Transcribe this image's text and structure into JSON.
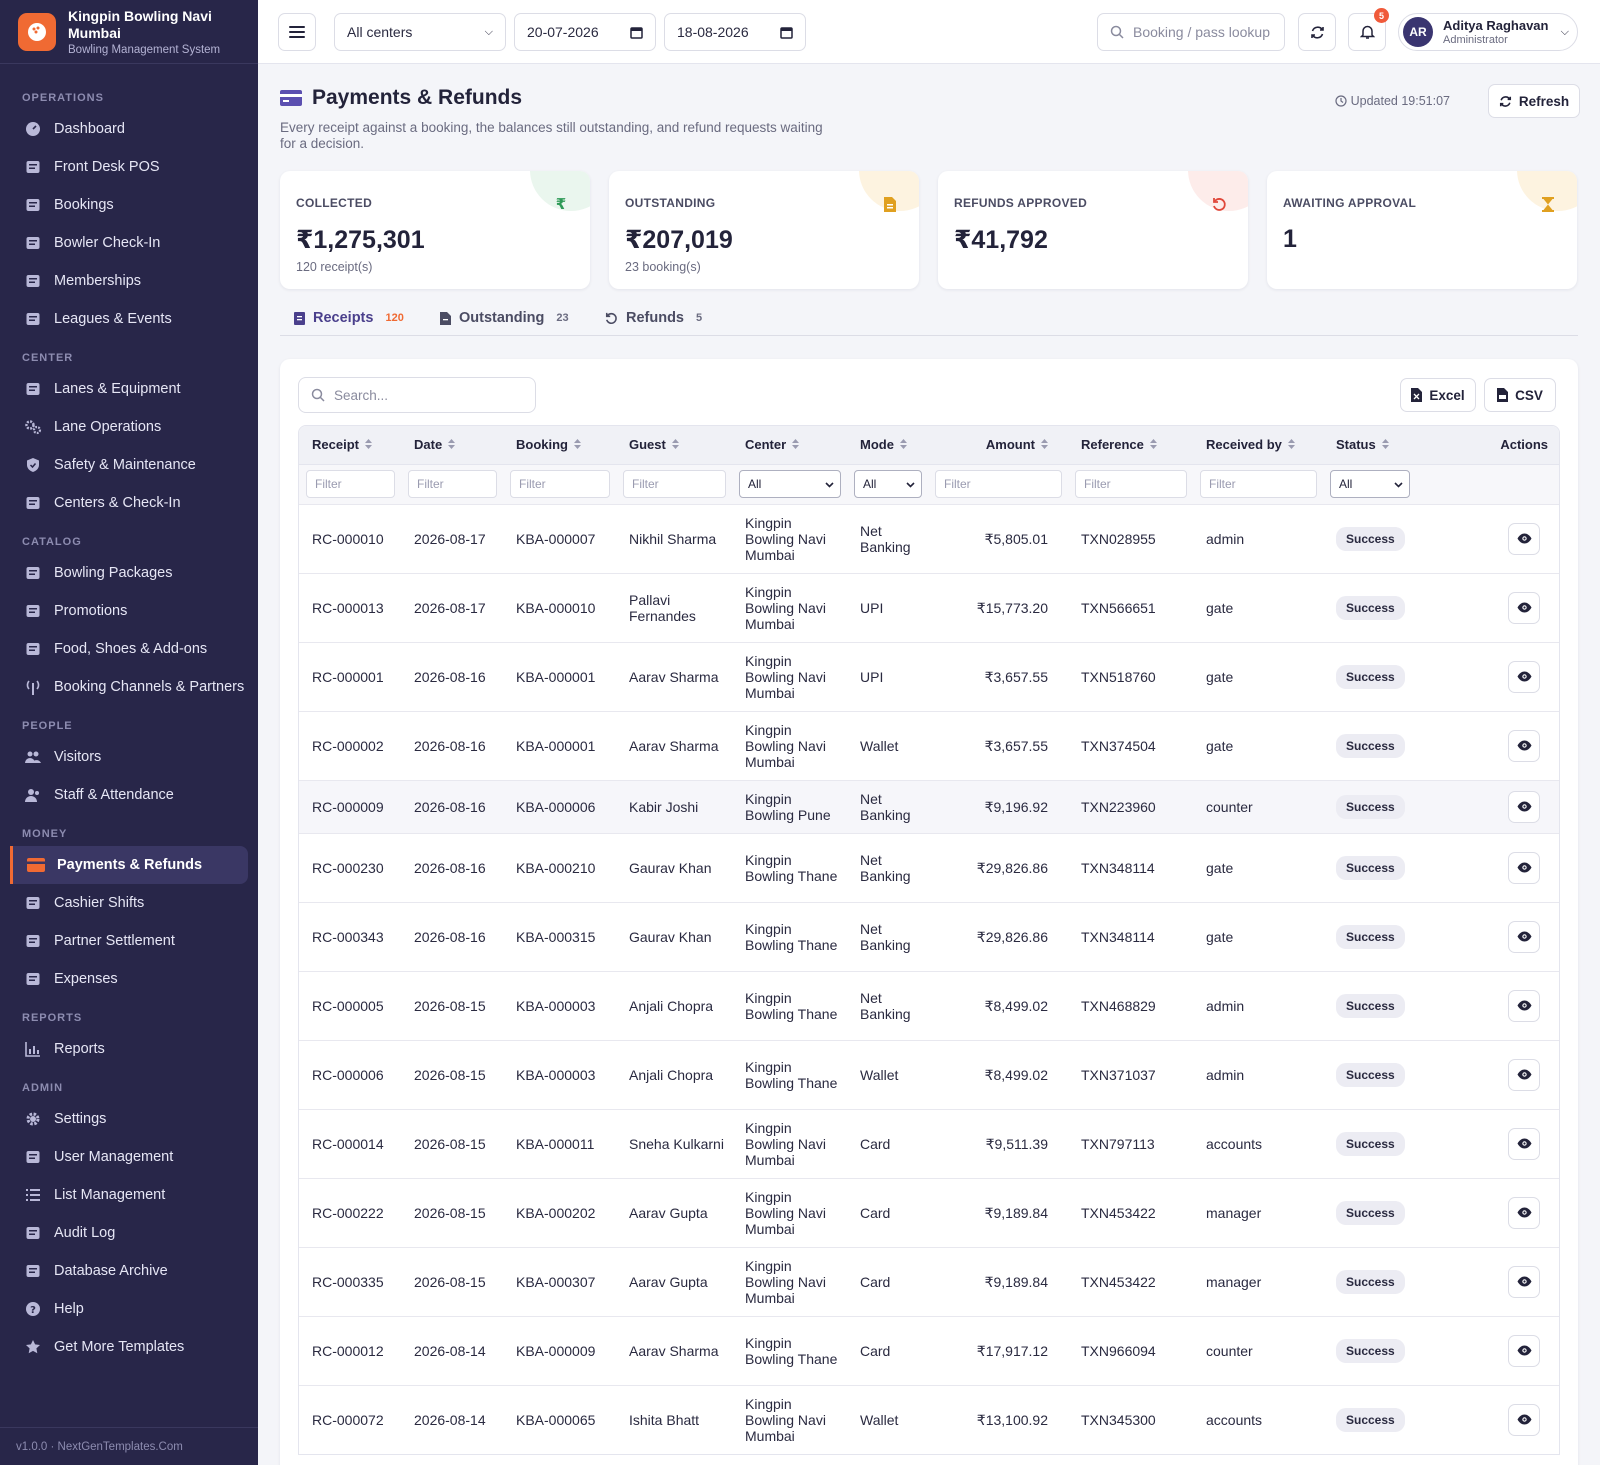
{
  "brand": {
    "name": "Kingpin Bowling Navi Mumbai",
    "subtitle": "Bowling Management System"
  },
  "sidebar": {
    "sections": [
      {
        "title": "OPERATIONS",
        "items": [
          {
            "label": "Dashboard",
            "icon": "gauge-icon"
          },
          {
            "label": "Front Desk POS",
            "icon": "cash-register-icon"
          },
          {
            "label": "Bookings",
            "icon": "receipt-icon"
          },
          {
            "label": "Bowler Check-In",
            "icon": "door-icon"
          },
          {
            "label": "Memberships",
            "icon": "id-card-icon"
          },
          {
            "label": "Leagues & Events",
            "icon": "masks-icon"
          }
        ]
      },
      {
        "title": "CENTER",
        "items": [
          {
            "label": "Lanes & Equipment",
            "icon": "bowling-ball-icon"
          },
          {
            "label": "Lane Operations",
            "icon": "gears-icon"
          },
          {
            "label": "Safety & Maintenance",
            "icon": "shield-icon"
          },
          {
            "label": "Centers & Check-In",
            "icon": "building-icon"
          }
        ]
      },
      {
        "title": "CATALOG",
        "items": [
          {
            "label": "Bowling Packages",
            "icon": "ticket-icon"
          },
          {
            "label": "Promotions",
            "icon": "tags-icon"
          },
          {
            "label": "Food, Shoes & Add-ons",
            "icon": "basket-icon"
          },
          {
            "label": "Booking Channels & Partners",
            "icon": "broadcast-icon"
          }
        ]
      },
      {
        "title": "PEOPLE",
        "items": [
          {
            "label": "Visitors",
            "icon": "users-icon"
          },
          {
            "label": "Staff & Attendance",
            "icon": "user-group-icon"
          }
        ]
      },
      {
        "title": "MONEY",
        "items": [
          {
            "label": "Payments & Refunds",
            "icon": "credit-card-icon",
            "active": true
          },
          {
            "label": "Cashier Shifts",
            "icon": "cash-icon"
          },
          {
            "label": "Partner Settlement",
            "icon": "handshake-icon"
          },
          {
            "label": "Expenses",
            "icon": "wallet-icon"
          }
        ]
      },
      {
        "title": "REPORTS",
        "items": [
          {
            "label": "Reports",
            "icon": "chart-icon"
          }
        ]
      },
      {
        "title": "ADMIN",
        "items": [
          {
            "label": "Settings",
            "icon": "gear-icon"
          },
          {
            "label": "User Management",
            "icon": "user-gear-icon"
          },
          {
            "label": "List Management",
            "icon": "list-icon"
          },
          {
            "label": "Audit Log",
            "icon": "clipboard-icon"
          },
          {
            "label": "Database Archive",
            "icon": "archive-icon"
          },
          {
            "label": "Help",
            "icon": "help-icon"
          },
          {
            "label": "Get More Templates",
            "icon": "star-icon"
          }
        ]
      }
    ],
    "footer": "v1.0.0 · NextGenTemplates.Com"
  },
  "topbar": {
    "center_select": "All centers",
    "date_from": "20-07-2026",
    "date_to": "18-08-2026",
    "lookup_placeholder": "Booking / pass lookup",
    "notification_count": "5",
    "user": {
      "initials": "AR",
      "name": "Aditya Raghavan",
      "role": "Administrator"
    }
  },
  "page": {
    "title": "Payments & Refunds",
    "subtitle": "Every receipt against a booking, the balances still outstanding, and refund requests waiting for a decision.",
    "updated": "Updated 19:51:07",
    "refresh_label": "Refresh"
  },
  "kpis": [
    {
      "label": "COLLECTED",
      "value": "₹1,275,301",
      "sub": "120 receipt(s)",
      "icon": "rupee-icon",
      "color": "#2e9a57",
      "bg": "#eaf6ee"
    },
    {
      "label": "OUTSTANDING",
      "value": "₹207,019",
      "sub": "23 booking(s)",
      "icon": "invoice-icon",
      "color": "#e0a020",
      "bg": "#fdf3e0"
    },
    {
      "label": "REFUNDS APPROVED",
      "value": "₹41,792",
      "sub": "",
      "icon": "undo-icon",
      "color": "#e0473a",
      "bg": "#fdecea"
    },
    {
      "label": "AWAITING APPROVAL",
      "value": "1",
      "sub": "",
      "icon": "hourglass-icon",
      "color": "#e0a020",
      "bg": "#fdf3e0"
    }
  ],
  "tabs": [
    {
      "label": "Receipts",
      "count": "120",
      "active": true
    },
    {
      "label": "Outstanding",
      "count": "23"
    },
    {
      "label": "Refunds",
      "count": "5"
    }
  ],
  "toolbar": {
    "search_placeholder": "Search...",
    "excel_label": "Excel",
    "csv_label": "CSV"
  },
  "table": {
    "columns": [
      "Receipt",
      "Date",
      "Booking",
      "Guest",
      "Center",
      "Mode",
      "Amount",
      "Reference",
      "Received by",
      "Status",
      "Actions"
    ],
    "filter_placeholder": "Filter",
    "filter_all": "All",
    "rows": [
      {
        "receipt": "RC-000010",
        "date": "2026-08-17",
        "booking": "KBA-000007",
        "guest": "Nikhil Sharma",
        "center": "Kingpin Bowling Navi Mumbai",
        "mode": "Net Banking",
        "amount": "₹5,805.01",
        "reference": "TXN028955",
        "received_by": "admin",
        "status": "Success"
      },
      {
        "receipt": "RC-000013",
        "date": "2026-08-17",
        "booking": "KBA-000010",
        "guest": "Pallavi Fernandes",
        "center": "Kingpin Bowling Navi Mumbai",
        "mode": "UPI",
        "amount": "₹15,773.20",
        "reference": "TXN566651",
        "received_by": "gate",
        "status": "Success"
      },
      {
        "receipt": "RC-000001",
        "date": "2026-08-16",
        "booking": "KBA-000001",
        "guest": "Aarav Sharma",
        "center": "Kingpin Bowling Navi Mumbai",
        "mode": "UPI",
        "amount": "₹3,657.55",
        "reference": "TXN518760",
        "received_by": "gate",
        "status": "Success"
      },
      {
        "receipt": "RC-000002",
        "date": "2026-08-16",
        "booking": "KBA-000001",
        "guest": "Aarav Sharma",
        "center": "Kingpin Bowling Navi Mumbai",
        "mode": "Wallet",
        "amount": "₹3,657.55",
        "reference": "TXN374504",
        "received_by": "gate",
        "status": "Success"
      },
      {
        "receipt": "RC-000009",
        "date": "2026-08-16",
        "booking": "KBA-000006",
        "guest": "Kabir Joshi",
        "center": "Kingpin Bowling Pune",
        "mode": "Net Banking",
        "amount": "₹9,196.92",
        "reference": "TXN223960",
        "received_by": "counter",
        "status": "Success",
        "highlight": true
      },
      {
        "receipt": "RC-000230",
        "date": "2026-08-16",
        "booking": "KBA-000210",
        "guest": "Gaurav Khan",
        "center": "Kingpin Bowling Thane",
        "mode": "Net Banking",
        "amount": "₹29,826.86",
        "reference": "TXN348114",
        "received_by": "gate",
        "status": "Success"
      },
      {
        "receipt": "RC-000343",
        "date": "2026-08-16",
        "booking": "KBA-000315",
        "guest": "Gaurav Khan",
        "center": "Kingpin Bowling Thane",
        "mode": "Net Banking",
        "amount": "₹29,826.86",
        "reference": "TXN348114",
        "received_by": "gate",
        "status": "Success"
      },
      {
        "receipt": "RC-000005",
        "date": "2026-08-15",
        "booking": "KBA-000003",
        "guest": "Anjali Chopra",
        "center": "Kingpin Bowling Thane",
        "mode": "Net Banking",
        "amount": "₹8,499.02",
        "reference": "TXN468829",
        "received_by": "admin",
        "status": "Success"
      },
      {
        "receipt": "RC-000006",
        "date": "2026-08-15",
        "booking": "KBA-000003",
        "guest": "Anjali Chopra",
        "center": "Kingpin Bowling Thane",
        "mode": "Wallet",
        "amount": "₹8,499.02",
        "reference": "TXN371037",
        "received_by": "admin",
        "status": "Success"
      },
      {
        "receipt": "RC-000014",
        "date": "2026-08-15",
        "booking": "KBA-000011",
        "guest": "Sneha Kulkarni",
        "center": "Kingpin Bowling Navi Mumbai",
        "mode": "Card",
        "amount": "₹9,511.39",
        "reference": "TXN797113",
        "received_by": "accounts",
        "status": "Success"
      },
      {
        "receipt": "RC-000222",
        "date": "2026-08-15",
        "booking": "KBA-000202",
        "guest": "Aarav Gupta",
        "center": "Kingpin Bowling Navi Mumbai",
        "mode": "Card",
        "amount": "₹9,189.84",
        "reference": "TXN453422",
        "received_by": "manager",
        "status": "Success"
      },
      {
        "receipt": "RC-000335",
        "date": "2026-08-15",
        "booking": "KBA-000307",
        "guest": "Aarav Gupta",
        "center": "Kingpin Bowling Navi Mumbai",
        "mode": "Card",
        "amount": "₹9,189.84",
        "reference": "TXN453422",
        "received_by": "manager",
        "status": "Success"
      },
      {
        "receipt": "RC-000012",
        "date": "2026-08-14",
        "booking": "KBA-000009",
        "guest": "Aarav Sharma",
        "center": "Kingpin Bowling Thane",
        "mode": "Card",
        "amount": "₹17,917.12",
        "reference": "TXN966094",
        "received_by": "counter",
        "status": "Success"
      },
      {
        "receipt": "RC-000072",
        "date": "2026-08-14",
        "booking": "KBA-000065",
        "guest": "Ishita Bhatt",
        "center": "Kingpin Bowling Navi Mumbai",
        "mode": "Wallet",
        "amount": "₹13,100.92",
        "reference": "TXN345300",
        "received_by": "accounts",
        "status": "Success"
      }
    ]
  }
}
